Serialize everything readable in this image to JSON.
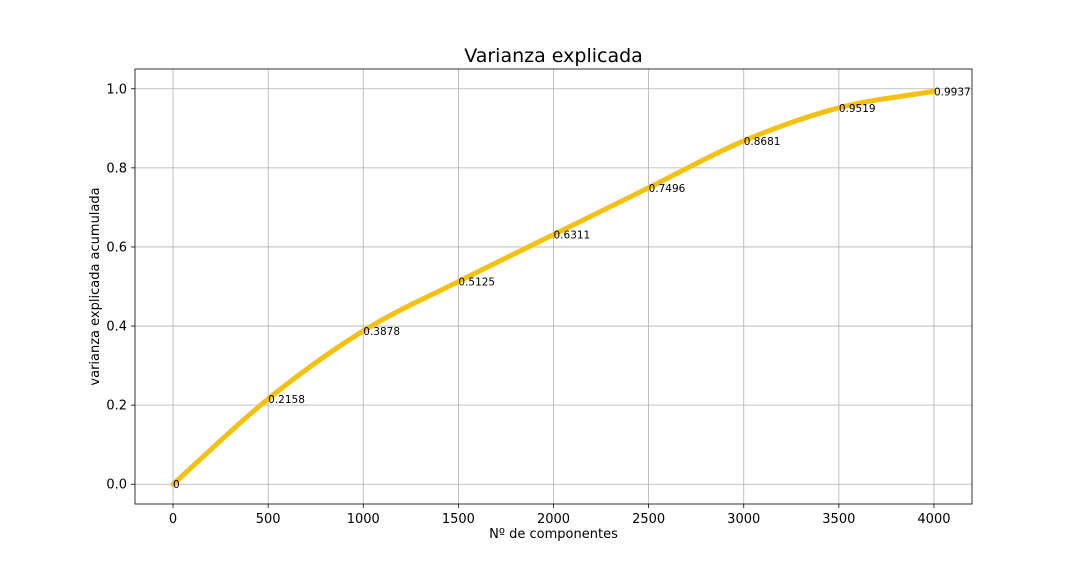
{
  "chart_data": {
    "type": "line",
    "title": "Varianza explicada",
    "xlabel": "Nº de componentes",
    "ylabel": "varianza explicada acumulada",
    "xlim": [
      -200,
      4200
    ],
    "ylim": [
      -0.05,
      1.05
    ],
    "xticks": [
      0,
      500,
      1000,
      1500,
      2000,
      2500,
      3000,
      3500,
      4000
    ],
    "yticks": [
      0.0,
      0.2,
      0.4,
      0.6,
      0.8,
      1.0
    ],
    "xtick_labels": [
      "0",
      "500",
      "1000",
      "1500",
      "2000",
      "2500",
      "3000",
      "3500",
      "4000"
    ],
    "ytick_labels": [
      "0.0",
      "0.2",
      "0.4",
      "0.6",
      "0.8",
      "1.0"
    ],
    "grid": true,
    "line_color": "#f5c10e",
    "series": [
      {
        "x": [
          0,
          500,
          1000,
          1500,
          2000,
          2500,
          3000,
          3500,
          4000
        ],
        "values": [
          0,
          0.2158,
          0.3878,
          0.5125,
          0.6311,
          0.7496,
          0.8681,
          0.9519,
          0.9937
        ]
      }
    ],
    "data_labels": [
      "0",
      "0.2158",
      "0.3878",
      "0.5125",
      "0.6311",
      "0.7496",
      "0.8681",
      "0.9519",
      "0.9937"
    ]
  }
}
